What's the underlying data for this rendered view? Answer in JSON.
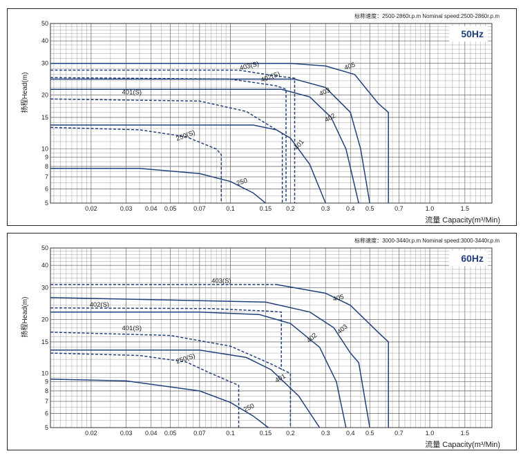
{
  "chart_data": [
    {
      "type": "line",
      "panel": "50Hz",
      "badge": "50Hz",
      "speed_note": "标称速度：2500-2860r.p.m   Nominal speed:2500-2860r.p.m",
      "ylabel": "扬程Head(m)",
      "xlabel": "流量 Capacity(m³/Min)",
      "x_scale": "log",
      "y_scale": "log",
      "xlim": [
        0.0125,
        2.05
      ],
      "ylim": [
        5,
        50
      ],
      "x_ticks": [
        "0.02",
        "0.03",
        "0.04",
        "0.05",
        "0.07",
        "0.1",
        "0.15",
        "0.2",
        "0.3",
        "0.4",
        "0.5",
        "0.7",
        "1.0",
        "1.5"
      ],
      "x_tick_values": [
        0.02,
        0.03,
        0.04,
        0.05,
        0.07,
        0.1,
        0.15,
        0.2,
        0.3,
        0.4,
        0.5,
        0.7,
        1.0,
        1.5
      ],
      "y_ticks": [
        "5",
        "6",
        "7",
        "8",
        "9",
        "10",
        "15",
        "20",
        "30",
        "40",
        "50"
      ],
      "y_tick_values": [
        5,
        6,
        7,
        8,
        9,
        10,
        15,
        20,
        30,
        40,
        50
      ],
      "series": [
        {
          "name": "250",
          "dashed": false,
          "points": [
            [
              0.0125,
              7.8
            ],
            [
              0.035,
              7.8
            ],
            [
              0.07,
              7.3
            ],
            [
              0.1,
              6.6
            ],
            [
              0.13,
              5.7
            ],
            [
              0.15,
              5
            ]
          ]
        },
        {
          "name": "250(S)",
          "dashed": true,
          "points": [
            [
              0.0125,
              13.2
            ],
            [
              0.035,
              12.8
            ],
            [
              0.06,
              11.7
            ],
            [
              0.085,
              10
            ],
            [
              0.09,
              9.3
            ],
            [
              0.09,
              5
            ]
          ]
        },
        {
          "name": "401",
          "dashed": false,
          "points": [
            [
              0.0125,
              13.6
            ],
            [
              0.13,
              13.6
            ],
            [
              0.17,
              12.8
            ],
            [
              0.2,
              11.5
            ],
            [
              0.25,
              8.2
            ],
            [
              0.3,
              5
            ]
          ]
        },
        {
          "name": "401(S)",
          "dashed": true,
          "points": [
            [
              0.0125,
              19
            ],
            [
              0.07,
              18.5
            ],
            [
              0.12,
              16.2
            ],
            [
              0.17,
              12.8
            ],
            [
              0.182,
              12.2
            ],
            [
              0.182,
              5
            ]
          ]
        },
        {
          "name": "402",
          "dashed": false,
          "points": [
            [
              0.0125,
              21.5
            ],
            [
              0.18,
              21.5
            ],
            [
              0.25,
              19.5
            ],
            [
              0.32,
              15
            ],
            [
              0.38,
              10
            ],
            [
              0.44,
              5
            ]
          ]
        },
        {
          "name": "402(S)",
          "dashed": true,
          "points": [
            [
              0.0125,
              25
            ],
            [
              0.1,
              24.5
            ],
            [
              0.17,
              22.5
            ],
            [
              0.19,
              21.5
            ],
            [
              0.19,
              5
            ]
          ]
        },
        {
          "name": "403",
          "dashed": false,
          "points": [
            [
              0.0125,
              24.5
            ],
            [
              0.21,
              24.5
            ],
            [
              0.3,
              22
            ],
            [
              0.4,
              16
            ],
            [
              0.45,
              10
            ],
            [
              0.5,
              5
            ]
          ]
        },
        {
          "name": "403(S)",
          "dashed": true,
          "points": [
            [
              0.0125,
              27.5
            ],
            [
              0.11,
              27.5
            ],
            [
              0.17,
              25.5
            ],
            [
              0.21,
              24.8
            ],
            [
              0.21,
              5
            ]
          ]
        },
        {
          "name": "405",
          "dashed": false,
          "points": [
            [
              0.0125,
              30
            ],
            [
              0.2,
              30
            ],
            [
              0.3,
              29
            ],
            [
              0.42,
              26
            ],
            [
              0.55,
              18
            ],
            [
              0.62,
              16
            ],
            [
              0.62,
              5
            ]
          ]
        }
      ],
      "curve_labels": [
        {
          "text": "250",
          "x": 0.115,
          "y": 6.4,
          "angle": -18
        },
        {
          "text": "250(S)",
          "x": 0.06,
          "y": 11.6,
          "angle": -20
        },
        {
          "text": "401",
          "x": 0.225,
          "y": 10.4,
          "angle": -50
        },
        {
          "text": "401(S)",
          "x": 0.032,
          "y": 20.2,
          "angle": 0
        },
        {
          "text": "402",
          "x": 0.32,
          "y": 14.6,
          "angle": -30
        },
        {
          "text": "402(S)",
          "x": 0.16,
          "y": 24.6,
          "angle": -20
        },
        {
          "text": "403",
          "x": 0.3,
          "y": 20.3,
          "angle": -25
        },
        {
          "text": "403(S)",
          "x": 0.125,
          "y": 28.3,
          "angle": -14
        },
        {
          "text": "405",
          "x": 0.4,
          "y": 28.2,
          "angle": -20
        }
      ]
    },
    {
      "type": "line",
      "panel": "60Hz",
      "badge": "60Hz",
      "speed_note": "标称速度：3000-3440r.p.m   Nominal speed:3000-3440r.p.m",
      "ylabel": "扬程Head(m)",
      "xlabel": "流量 Capacity(m³/Min)",
      "x_scale": "log",
      "y_scale": "log",
      "xlim": [
        0.0125,
        2.05
      ],
      "ylim": [
        5,
        50
      ],
      "x_ticks": [
        "0.02",
        "0.03",
        "0.04",
        "0.05",
        "0.07",
        "0.1",
        "0.15",
        "0.2",
        "0.3",
        "0.4",
        "0.5",
        "0.7",
        "1.0",
        "1.5"
      ],
      "x_tick_values": [
        0.02,
        0.03,
        0.04,
        0.05,
        0.07,
        0.1,
        0.15,
        0.2,
        0.3,
        0.4,
        0.5,
        0.7,
        1.0,
        1.5
      ],
      "y_ticks": [
        "5",
        "6",
        "7",
        "8",
        "9",
        "10",
        "15",
        "20",
        "30",
        "40",
        "50"
      ],
      "y_tick_values": [
        5,
        6,
        7,
        8,
        9,
        10,
        15,
        20,
        30,
        40,
        50
      ],
      "series": [
        {
          "name": "250",
          "dashed": false,
          "points": [
            [
              0.0125,
              9.3
            ],
            [
              0.03,
              9.1
            ],
            [
              0.07,
              8
            ],
            [
              0.1,
              6.9
            ],
            [
              0.13,
              5.8
            ],
            [
              0.155,
              5
            ]
          ]
        },
        {
          "name": "250(S)",
          "dashed": true,
          "points": [
            [
              0.0125,
              13
            ],
            [
              0.035,
              12.6
            ],
            [
              0.06,
              11.6
            ],
            [
              0.08,
              10
            ],
            [
              0.11,
              8.6
            ],
            [
              0.11,
              5
            ]
          ]
        },
        {
          "name": "401",
          "dashed": false,
          "points": [
            [
              0.0125,
              13.5
            ],
            [
              0.07,
              13.5
            ],
            [
              0.12,
              12.3
            ],
            [
              0.16,
              10.5
            ],
            [
              0.22,
              7.5
            ],
            [
              0.28,
              5
            ]
          ]
        },
        {
          "name": "401(S)",
          "dashed": true,
          "points": [
            [
              0.0125,
              17
            ],
            [
              0.05,
              16.3
            ],
            [
              0.1,
              14.2
            ],
            [
              0.16,
              11.3
            ],
            [
              0.2,
              10
            ],
            [
              0.2,
              5
            ]
          ]
        },
        {
          "name": "402",
          "dashed": false,
          "points": [
            [
              0.0125,
              22
            ],
            [
              0.07,
              22
            ],
            [
              0.14,
              21.3
            ],
            [
              0.2,
              19
            ],
            [
              0.28,
              14
            ],
            [
              0.34,
              9
            ],
            [
              0.38,
              5
            ]
          ]
        },
        {
          "name": "402(S)",
          "dashed": true,
          "points": [
            [
              0.0125,
              23.2
            ],
            [
              0.08,
              23
            ],
            [
              0.15,
              22.3
            ],
            [
              0.18,
              22
            ],
            [
              0.18,
              10.5
            ]
          ]
        },
        {
          "name": "403",
          "dashed": false,
          "points": [
            [
              0.0125,
              26.5
            ],
            [
              0.15,
              25
            ],
            [
              0.25,
              22
            ],
            [
              0.33,
              18
            ],
            [
              0.4,
              13
            ],
            [
              0.44,
              11.5
            ],
            [
              0.5,
              5
            ]
          ]
        },
        {
          "name": "403(S)",
          "dashed": true,
          "points": [
            [
              0.0125,
              31.3
            ],
            [
              0.17,
              31.3
            ]
          ]
        },
        {
          "name": "405",
          "dashed": false,
          "points": [
            [
              0.17,
              31.3
            ],
            [
              0.3,
              28
            ],
            [
              0.4,
              24
            ],
            [
              0.55,
              17
            ],
            [
              0.62,
              15
            ],
            [
              0.62,
              5
            ]
          ]
        }
      ],
      "curve_labels": [
        {
          "text": "250",
          "x": 0.125,
          "y": 6.3,
          "angle": -25
        },
        {
          "text": "250(S)",
          "x": 0.06,
          "y": 11.8,
          "angle": -18
        },
        {
          "text": "401",
          "x": 0.18,
          "y": 9.2,
          "angle": -30
        },
        {
          "text": "401(S)",
          "x": 0.032,
          "y": 17.4,
          "angle": 0
        },
        {
          "text": "402",
          "x": 0.26,
          "y": 15.5,
          "angle": -40
        },
        {
          "text": "402(S)",
          "x": 0.022,
          "y": 23.6,
          "angle": 0
        },
        {
          "text": "403",
          "x": 0.37,
          "y": 17.3,
          "angle": -40
        },
        {
          "text": "403(S)",
          "x": 0.09,
          "y": 32,
          "angle": 0
        },
        {
          "text": "405",
          "x": 0.35,
          "y": 25.7,
          "angle": -15
        }
      ]
    }
  ]
}
